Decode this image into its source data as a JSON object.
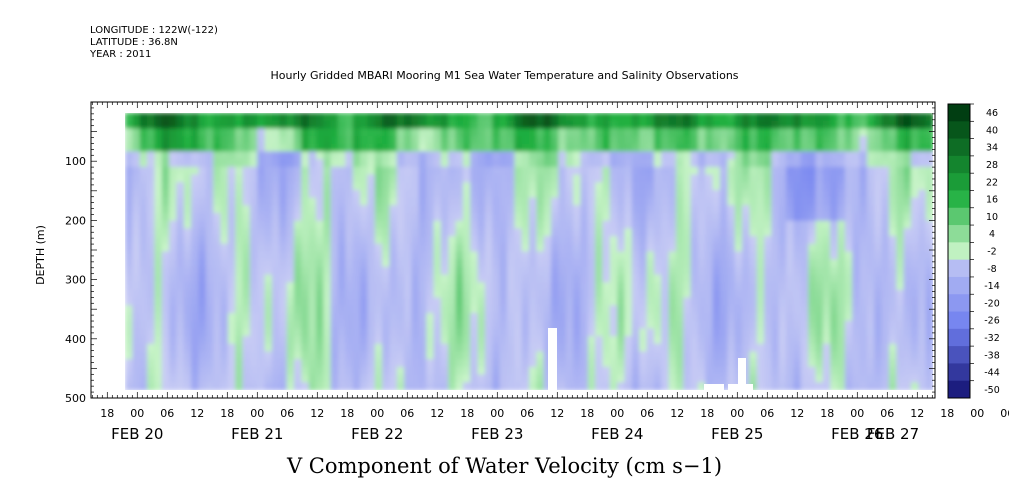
{
  "header": {
    "longitude": "LONGITUDE : 122W(-122)",
    "latitude": "LATITUDE : 36.8N",
    "year": "YEAR : 2011"
  },
  "colors": {
    "pos_dark": "#003a10",
    "pos_mid": "#20b040",
    "pos_light": "#c8f4c8",
    "neg_light": "#c8ccf4",
    "neg_mid": "#7080f0",
    "neg_dark": "#101070"
  },
  "chart_data": {
    "type": "heatmap",
    "title": "Hourly Gridded MBARI Mooring M1 Sea Water Temperature and Salinity Observations",
    "xlabel": "",
    "ylabel": "DEPTH (m)",
    "bottom_title": "V Component of Water Velocity (cm s−1)",
    "ylim": [
      500,
      0
    ],
    "y_ticks": [
      100,
      200,
      300,
      400,
      500
    ],
    "x_hour_ticks": [
      "18",
      "00",
      "06",
      "12",
      "18",
      "00",
      "06",
      "12",
      "18",
      "00",
      "06",
      "12",
      "18",
      "00",
      "06",
      "12",
      "18",
      "00",
      "06",
      "12",
      "18",
      "00",
      "06",
      "12",
      "18",
      "00",
      "06",
      "12",
      "18",
      "00",
      "06",
      "12"
    ],
    "x_day_labels": [
      "FEB 20",
      "FEB 21",
      "FEB 22",
      "FEB 23",
      "FEB 24",
      "FEB 25",
      "FEB 26",
      "FEB 27"
    ],
    "colorbar_levels": [
      "46",
      "40",
      "34",
      "28",
      "22",
      "16",
      "10",
      "4",
      "-2",
      "-8",
      "-14",
      "-20",
      "-26",
      "-32",
      "-38",
      "-44",
      "-50"
    ],
    "value_range": [
      -50,
      50
    ]
  }
}
